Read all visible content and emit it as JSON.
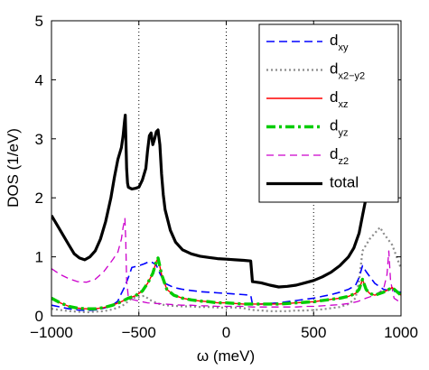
{
  "chart_data": {
    "type": "line",
    "title": "",
    "xlabel": "ω (meV)",
    "ylabel": "DOS (1/eV)",
    "xlim": [
      -1000,
      1000
    ],
    "ylim": [
      0,
      5
    ],
    "xticks": [
      -1000,
      -500,
      0,
      500,
      1000
    ],
    "yticks": [
      0,
      1,
      2,
      3,
      4,
      5
    ],
    "grid": false,
    "vlines": [
      -500,
      0,
      500,
      1000
    ],
    "legend_position": "top-right",
    "series": [
      {
        "name": "d_xy",
        "legend_base": "d",
        "legend_sub": "xy",
        "legend_sub_sup": "",
        "color": "#0000ff",
        "dash": "9,5",
        "width": 1.6,
        "x": [
          -1000,
          -950,
          -900,
          -850,
          -800,
          -750,
          -700,
          -650,
          -620,
          -600,
          -580,
          -560,
          -540,
          -500,
          -470,
          -440,
          -420,
          -400,
          -380,
          -350,
          -300,
          -250,
          -200,
          -150,
          -100,
          -50,
          0,
          50,
          100,
          140,
          150,
          200,
          250,
          300,
          350,
          400,
          450,
          500,
          550,
          600,
          650,
          700,
          740,
          760,
          780,
          800,
          850,
          900,
          950,
          1000
        ],
        "y": [
          0.18,
          0.15,
          0.12,
          0.1,
          0.09,
          0.1,
          0.13,
          0.18,
          0.25,
          0.38,
          0.5,
          0.65,
          0.82,
          0.85,
          0.88,
          0.92,
          0.9,
          0.86,
          0.72,
          0.55,
          0.48,
          0.45,
          0.43,
          0.41,
          0.4,
          0.39,
          0.38,
          0.37,
          0.36,
          0.35,
          0.2,
          0.2,
          0.21,
          0.22,
          0.24,
          0.26,
          0.28,
          0.3,
          0.33,
          0.36,
          0.4,
          0.45,
          0.52,
          0.65,
          0.85,
          0.75,
          0.55,
          0.45,
          0.42,
          0.4
        ]
      },
      {
        "name": "d_x²−y²",
        "legend_base": "d",
        "legend_sub": "x",
        "legend_sub_sup": "2−y2",
        "color": "#8c8c8c",
        "dash": "2,3",
        "width": 2.2,
        "x": [
          -1000,
          -950,
          -900,
          -850,
          -800,
          -750,
          -700,
          -650,
          -600,
          -580,
          -560,
          -540,
          -500,
          -470,
          -450,
          -430,
          -400,
          -380,
          -350,
          -300,
          -250,
          -200,
          -150,
          -100,
          -50,
          0,
          50,
          100,
          150,
          200,
          250,
          300,
          350,
          400,
          450,
          500,
          550,
          600,
          650,
          700,
          740,
          760,
          780,
          800,
          820,
          850,
          880,
          900,
          950,
          1000
        ],
        "y": [
          0.12,
          0.1,
          0.08,
          0.07,
          0.06,
          0.07,
          0.08,
          0.11,
          0.16,
          0.2,
          0.25,
          0.3,
          0.32,
          0.34,
          0.3,
          0.26,
          0.22,
          0.2,
          0.18,
          0.17,
          0.16,
          0.16,
          0.15,
          0.15,
          0.14,
          0.14,
          0.14,
          0.13,
          0.1,
          0.09,
          0.08,
          0.08,
          0.08,
          0.09,
          0.09,
          0.1,
          0.11,
          0.13,
          0.15,
          0.2,
          0.3,
          0.6,
          1.1,
          1.2,
          1.3,
          1.4,
          1.5,
          1.4,
          1.2,
          0.8
        ]
      },
      {
        "name": "d_xz",
        "legend_base": "d",
        "legend_sub": "xz",
        "legend_sub_sup": "",
        "color": "#ff0000",
        "dash": "",
        "width": 1.4,
        "x": [
          -1000,
          -950,
          -900,
          -850,
          -800,
          -750,
          -700,
          -650,
          -600,
          -560,
          -520,
          -480,
          -450,
          -420,
          -400,
          -390,
          -370,
          -340,
          -300,
          -250,
          -200,
          -150,
          -100,
          -50,
          0,
          50,
          100,
          150,
          200,
          250,
          300,
          350,
          400,
          450,
          500,
          550,
          600,
          650,
          700,
          740,
          760,
          780,
          800,
          820,
          850,
          900,
          950,
          1000
        ],
        "y": [
          0.3,
          0.22,
          0.16,
          0.13,
          0.12,
          0.12,
          0.14,
          0.18,
          0.24,
          0.3,
          0.34,
          0.42,
          0.55,
          0.72,
          0.92,
          0.98,
          0.7,
          0.45,
          0.35,
          0.3,
          0.27,
          0.25,
          0.24,
          0.22,
          0.22,
          0.21,
          0.2,
          0.2,
          0.2,
          0.2,
          0.2,
          0.21,
          0.22,
          0.23,
          0.24,
          0.26,
          0.28,
          0.3,
          0.33,
          0.38,
          0.45,
          0.62,
          0.45,
          0.38,
          0.35,
          0.4,
          0.48,
          0.35
        ]
      },
      {
        "name": "d_yz",
        "legend_base": "d",
        "legend_sub": "yz",
        "legend_sub_sup": "",
        "color": "#00cc00",
        "dash": "10,4,3,4",
        "width": 3.4,
        "x": [
          -1000,
          -950,
          -900,
          -850,
          -800,
          -750,
          -700,
          -650,
          -600,
          -560,
          -520,
          -480,
          -450,
          -420,
          -400,
          -390,
          -370,
          -340,
          -300,
          -250,
          -200,
          -150,
          -100,
          -50,
          0,
          50,
          100,
          150,
          200,
          250,
          300,
          350,
          400,
          450,
          500,
          550,
          600,
          650,
          700,
          740,
          760,
          780,
          800,
          820,
          850,
          900,
          950,
          1000
        ],
        "y": [
          0.3,
          0.22,
          0.16,
          0.13,
          0.12,
          0.12,
          0.14,
          0.18,
          0.24,
          0.3,
          0.34,
          0.42,
          0.55,
          0.72,
          0.92,
          0.98,
          0.7,
          0.45,
          0.35,
          0.3,
          0.27,
          0.25,
          0.24,
          0.22,
          0.22,
          0.21,
          0.2,
          0.2,
          0.2,
          0.2,
          0.2,
          0.21,
          0.22,
          0.23,
          0.24,
          0.26,
          0.28,
          0.3,
          0.33,
          0.38,
          0.45,
          0.62,
          0.45,
          0.38,
          0.35,
          0.4,
          0.48,
          0.35
        ]
      },
      {
        "name": "d_z²",
        "legend_base": "d",
        "legend_sub": "z",
        "legend_sub_sup": "2",
        "color": "#cc00cc",
        "dash": "8,5",
        "width": 1.3,
        "x": [
          -1000,
          -950,
          -900,
          -850,
          -800,
          -750,
          -700,
          -650,
          -620,
          -600,
          -590,
          -580,
          -575,
          -570,
          -560,
          -540,
          -500,
          -450,
          -400,
          -350,
          -300,
          -250,
          -200,
          -150,
          -100,
          -50,
          0,
          50,
          100,
          150,
          200,
          250,
          300,
          350,
          400,
          450,
          500,
          550,
          600,
          650,
          700,
          750,
          800,
          850,
          900,
          920,
          930,
          940,
          960,
          1000
        ],
        "y": [
          0.8,
          0.7,
          0.63,
          0.58,
          0.57,
          0.62,
          0.75,
          0.95,
          1.08,
          1.3,
          1.5,
          1.65,
          1.3,
          0.6,
          0.32,
          0.28,
          0.25,
          0.22,
          0.21,
          0.2,
          0.19,
          0.18,
          0.18,
          0.17,
          0.17,
          0.16,
          0.16,
          0.16,
          0.16,
          0.15,
          0.15,
          0.15,
          0.15,
          0.15,
          0.15,
          0.16,
          0.16,
          0.17,
          0.18,
          0.19,
          0.21,
          0.24,
          0.3,
          0.35,
          0.45,
          0.7,
          1.1,
          0.6,
          0.3,
          0.22
        ]
      },
      {
        "name": "total",
        "legend_base": "total",
        "legend_sub": "",
        "legend_sub_sup": "",
        "color": "#000000",
        "dash": "",
        "width": 3.2,
        "x": [
          -1000,
          -970,
          -940,
          -900,
          -870,
          -840,
          -810,
          -780,
          -750,
          -720,
          -690,
          -660,
          -640,
          -620,
          -600,
          -590,
          -582,
          -578,
          -575,
          -570,
          -565,
          -560,
          -540,
          -520,
          -500,
          -480,
          -460,
          -450,
          -440,
          -430,
          -420,
          -410,
          -400,
          -390,
          -380,
          -370,
          -360,
          -350,
          -320,
          -290,
          -250,
          -200,
          -150,
          -100,
          -50,
          0,
          50,
          100,
          140,
          150,
          200,
          250,
          300,
          350,
          400,
          450,
          500,
          550,
          600,
          650,
          700,
          730,
          760,
          780,
          800,
          820,
          835
        ],
        "y": [
          1.7,
          1.55,
          1.4,
          1.2,
          1.05,
          0.98,
          0.95,
          1.0,
          1.1,
          1.3,
          1.6,
          2.0,
          2.35,
          2.65,
          2.85,
          3.05,
          3.3,
          3.4,
          3.1,
          2.5,
          2.25,
          2.18,
          2.15,
          2.16,
          2.18,
          2.3,
          2.5,
          2.8,
          3.05,
          3.1,
          2.9,
          3.0,
          3.12,
          3.15,
          2.9,
          2.4,
          2.05,
          1.8,
          1.45,
          1.25,
          1.12,
          1.05,
          1.01,
          0.99,
          0.97,
          0.96,
          0.95,
          0.94,
          0.93,
          0.58,
          0.56,
          0.52,
          0.49,
          0.5,
          0.52,
          0.56,
          0.6,
          0.66,
          0.74,
          0.85,
          1.0,
          1.15,
          1.4,
          1.7,
          2.0,
          2.6,
          3.3
        ]
      }
    ]
  }
}
